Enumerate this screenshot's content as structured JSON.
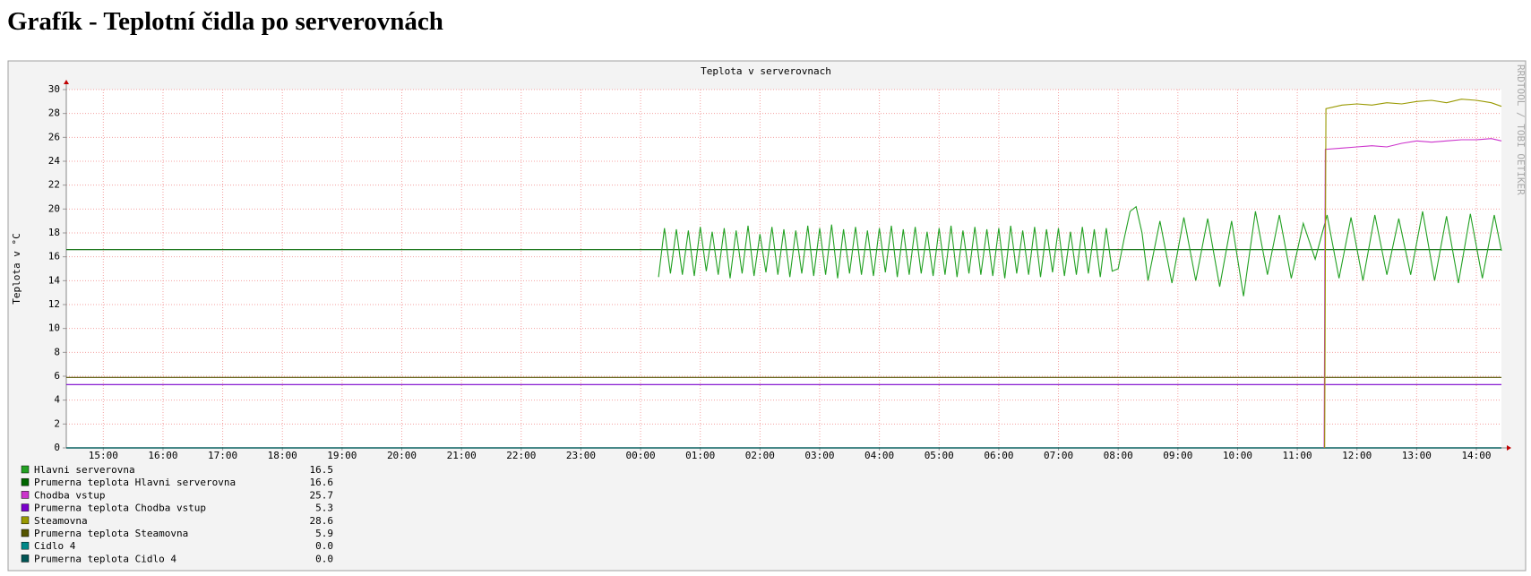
{
  "header": {
    "title": "Grafík - Teplotní čidla po serverovnách"
  },
  "chart_data": {
    "type": "line",
    "title": "Teplota v serverovnach",
    "ylabel": "Teplota v °C",
    "watermark": "RRDTOOL / TOBI OETIKER",
    "xlim": [
      14.38,
      38.42
    ],
    "ylim": [
      0,
      30
    ],
    "grid": true,
    "xticks": [
      {
        "value": 15,
        "label": "15:00"
      },
      {
        "value": 16,
        "label": "16:00"
      },
      {
        "value": 17,
        "label": "17:00"
      },
      {
        "value": 18,
        "label": "18:00"
      },
      {
        "value": 19,
        "label": "19:00"
      },
      {
        "value": 20,
        "label": "20:00"
      },
      {
        "value": 21,
        "label": "21:00"
      },
      {
        "value": 22,
        "label": "22:00"
      },
      {
        "value": 23,
        "label": "23:00"
      },
      {
        "value": 24,
        "label": "00:00"
      },
      {
        "value": 25,
        "label": "01:00"
      },
      {
        "value": 26,
        "label": "02:00"
      },
      {
        "value": 27,
        "label": "03:00"
      },
      {
        "value": 28,
        "label": "04:00"
      },
      {
        "value": 29,
        "label": "05:00"
      },
      {
        "value": 30,
        "label": "06:00"
      },
      {
        "value": 31,
        "label": "07:00"
      },
      {
        "value": 32,
        "label": "08:00"
      },
      {
        "value": 33,
        "label": "09:00"
      },
      {
        "value": 34,
        "label": "10:00"
      },
      {
        "value": 35,
        "label": "11:00"
      },
      {
        "value": 36,
        "label": "12:00"
      },
      {
        "value": 37,
        "label": "13:00"
      },
      {
        "value": 38,
        "label": "14:00"
      }
    ],
    "yticks": [
      0,
      2,
      4,
      6,
      8,
      10,
      12,
      14,
      16,
      18,
      20,
      22,
      24,
      26,
      28,
      30
    ],
    "series": [
      {
        "name": "Hlavni serverovna",
        "color": "#22a022",
        "x": [
          24.3,
          24.4,
          24.5,
          24.6,
          24.7,
          24.8,
          24.9,
          25.0,
          25.1,
          25.2,
          25.3,
          25.4,
          25.5,
          25.6,
          25.7,
          25.8,
          25.9,
          26.0,
          26.1,
          26.2,
          26.3,
          26.4,
          26.5,
          26.6,
          26.7,
          26.8,
          26.9,
          27.0,
          27.1,
          27.2,
          27.3,
          27.4,
          27.5,
          27.6,
          27.7,
          27.8,
          27.9,
          28.0,
          28.1,
          28.2,
          28.3,
          28.4,
          28.5,
          28.6,
          28.7,
          28.8,
          28.9,
          29.0,
          29.1,
          29.2,
          29.3,
          29.4,
          29.5,
          29.6,
          29.7,
          29.8,
          29.9,
          30.0,
          30.1,
          30.2,
          30.3,
          30.4,
          30.5,
          30.6,
          30.7,
          30.8,
          30.9,
          31.0,
          31.1,
          31.2,
          31.3,
          31.4,
          31.5,
          31.6,
          31.7,
          31.8,
          31.9,
          32.0,
          32.1,
          32.2,
          32.3,
          32.4,
          32.5,
          32.7,
          32.9,
          33.1,
          33.3,
          33.5,
          33.7,
          33.9,
          34.1,
          34.3,
          34.5,
          34.7,
          34.9,
          35.1,
          35.3,
          35.5,
          35.7,
          35.9,
          36.1,
          36.3,
          36.5,
          36.7,
          36.9,
          37.1,
          37.3,
          37.5,
          37.7,
          37.9,
          38.1,
          38.3,
          38.42
        ],
        "values": [
          14.3,
          18.4,
          14.6,
          18.3,
          14.5,
          18.2,
          14.4,
          18.5,
          14.8,
          18.1,
          14.5,
          18.4,
          14.2,
          18.2,
          14.6,
          18.6,
          14.4,
          17.9,
          14.7,
          18.5,
          14.5,
          18.3,
          14.3,
          18.2,
          14.6,
          18.6,
          14.4,
          18.4,
          14.5,
          18.7,
          14.2,
          18.3,
          14.6,
          18.5,
          14.5,
          18.2,
          14.4,
          18.4,
          14.7,
          18.6,
          14.3,
          18.3,
          14.5,
          18.5,
          14.6,
          18.1,
          14.4,
          18.4,
          14.5,
          18.6,
          14.3,
          18.2,
          14.6,
          18.5,
          14.5,
          18.3,
          14.4,
          18.4,
          14.2,
          18.6,
          14.6,
          18.2,
          14.5,
          18.5,
          14.3,
          18.3,
          14.7,
          18.4,
          14.4,
          18.1,
          14.5,
          18.5,
          14.6,
          18.3,
          14.3,
          18.4,
          14.8,
          15.0,
          17.5,
          19.8,
          20.2,
          18.0,
          14.0,
          19.0,
          13.8,
          19.3,
          14.0,
          19.2,
          13.5,
          19.0,
          12.7,
          19.8,
          14.5,
          19.5,
          14.2,
          18.8,
          15.8,
          19.5,
          14.2,
          19.3,
          14.0,
          19.5,
          14.5,
          19.2,
          14.5,
          19.8,
          14.0,
          19.4,
          13.8,
          19.6,
          14.2,
          19.5,
          16.5
        ]
      },
      {
        "name": "Prumerna teplota Hlavni serverovna",
        "color": "#006600",
        "hline": 16.6
      },
      {
        "name": "Chodba vstup",
        "color": "#cc33cc",
        "x": [
          35.45,
          35.47,
          35.75,
          36.0,
          36.25,
          36.5,
          36.75,
          37.0,
          37.25,
          37.5,
          37.75,
          38.0,
          38.25,
          38.42
        ],
        "values": [
          0,
          25.0,
          25.1,
          25.2,
          25.3,
          25.2,
          25.5,
          25.7,
          25.6,
          25.7,
          25.8,
          25.8,
          25.9,
          25.7
        ]
      },
      {
        "name": "Prumerna teplota Chodba vstup",
        "color": "#7a00cc",
        "hline": 5.3
      },
      {
        "name": "Steamovna",
        "color": "#999900",
        "x": [
          35.46,
          35.48,
          35.75,
          36.0,
          36.25,
          36.5,
          36.75,
          37.0,
          37.25,
          37.5,
          37.75,
          38.0,
          38.25,
          38.42
        ],
        "values": [
          0,
          28.4,
          28.7,
          28.8,
          28.7,
          28.9,
          28.8,
          29.0,
          29.1,
          28.9,
          29.2,
          29.1,
          28.9,
          28.6
        ]
      },
      {
        "name": "Prumerna teplota Steamovna",
        "color": "#555500",
        "hline": 5.9
      },
      {
        "name": "Cidlo 4",
        "color": "#008888",
        "hline": {
          "value": 0,
          "label": "0.0"
        }
      },
      {
        "name": "Prumerna teplota Cidlo 4",
        "color": "#005555",
        "hline": {
          "value": 0,
          "label": "0.0"
        }
      }
    ]
  }
}
